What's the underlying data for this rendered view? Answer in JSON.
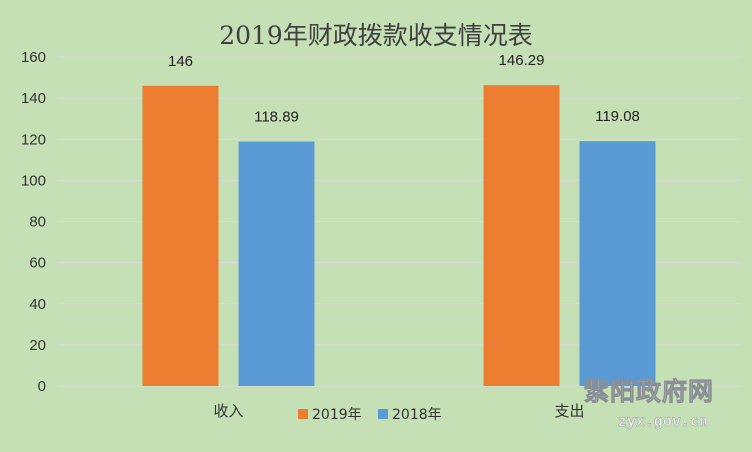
{
  "chart_data": {
    "type": "bar",
    "title": "2019年财政拨款收支情况表",
    "categories": [
      "收入",
      "支出"
    ],
    "series": [
      {
        "name": "2019年",
        "values": [
          146,
          146.29
        ],
        "labels": [
          "146",
          "146.29"
        ],
        "color": "#ED7D31"
      },
      {
        "name": "2018年",
        "values": [
          118.89,
          119.08
        ],
        "labels": [
          "118.89",
          "119.08"
        ],
        "color": "#5B9BD5"
      }
    ],
    "ylim": [
      0,
      160
    ],
    "yticks": [
      "0",
      "20",
      "40",
      "60",
      "80",
      "100",
      "120",
      "140",
      "160"
    ],
    "grid": true,
    "legend_position": "bottom",
    "background_color": "#C5E0B4",
    "gridline_color": "#D9D9D9"
  },
  "watermark": {
    "name": "紫阳政府网",
    "url": "zyx.gov.cn"
  }
}
